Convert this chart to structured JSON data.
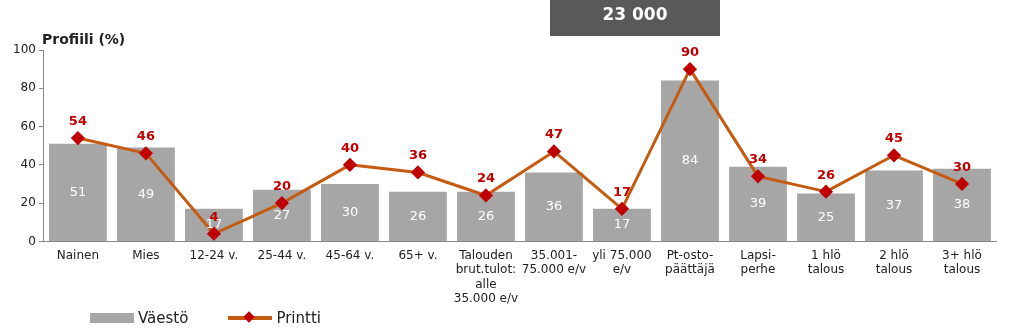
{
  "chart_data": {
    "type": "bar",
    "ylabel": "Profiili (%)",
    "annotations": [
      "23 000"
    ],
    "categories": [
      "Nainen",
      "Mies",
      "12-24 v.",
      "25-44 v.",
      "45-64 v.",
      "65+ v.",
      "Talouden brut.tulot: alle 35.000 e/v",
      "35.001-75.000 e/v",
      "yli 75.000 e/v",
      "Pt-osto-päättäjä",
      "Lapsi-perhe",
      "1 hlö talous",
      "2 hlö talous",
      "3+ hlö talous"
    ],
    "series": [
      {
        "name": "Väestö",
        "color": "#a6a6a6",
        "values": [
          51,
          49,
          17,
          27,
          30,
          26,
          26,
          36,
          17,
          84,
          39,
          25,
          37,
          38
        ]
      },
      {
        "name": "Printti",
        "type": "line",
        "color": "#c55a11",
        "marker": "diamond",
        "values": [
          54,
          46,
          4,
          20,
          40,
          36,
          24,
          47,
          17,
          90,
          34,
          26,
          45,
          30
        ]
      }
    ],
    "ylim": [
      0,
      100
    ],
    "yticks": [
      0,
      20,
      40,
      60,
      80,
      100
    ],
    "grid": false,
    "legend": "bottom left",
    "data_labels": true
  }
}
